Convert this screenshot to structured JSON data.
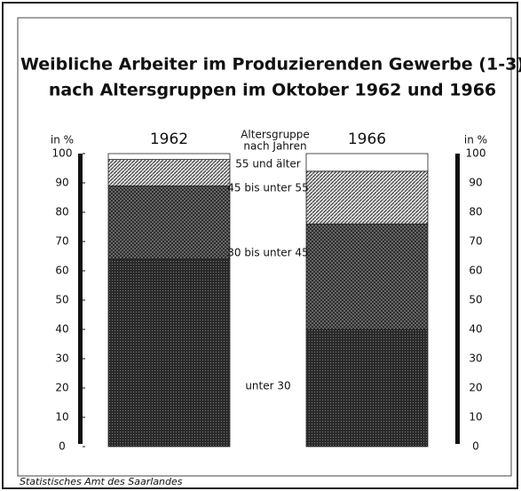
{
  "chart_data": {
    "type": "stacked_bar",
    "title": [
      "Weibliche Arbeiter im Produzierenden Gewerbe (1-3)",
      "nach Altersgruppen im Oktober 1962 und 1966"
    ],
    "y_label": "in %",
    "legend_title": [
      "Altersgruppe",
      "nach Jahren"
    ],
    "categories": [
      "1962",
      "1966"
    ],
    "series": [
      {
        "name": "unter 30",
        "color": "#2e2e2e",
        "pattern": "dense",
        "values": [
          64,
          40
        ]
      },
      {
        "name": "30 bis unter 45",
        "color": "#555555",
        "pattern": "cross",
        "values": [
          25,
          36
        ]
      },
      {
        "name": "45 bis unter 55",
        "color": "#777777",
        "pattern": "hatch",
        "values": [
          9,
          18
        ]
      },
      {
        "name": "55 und älter",
        "color": "#ffffff",
        "pattern": "none",
        "values": [
          2,
          6
        ]
      }
    ],
    "ylim": [
      0,
      100
    ],
    "yticks": [
      0,
      10,
      20,
      30,
      40,
      50,
      60,
      70,
      80,
      90,
      100
    ],
    "source": "Statistisches Amt des Saarlandes"
  }
}
